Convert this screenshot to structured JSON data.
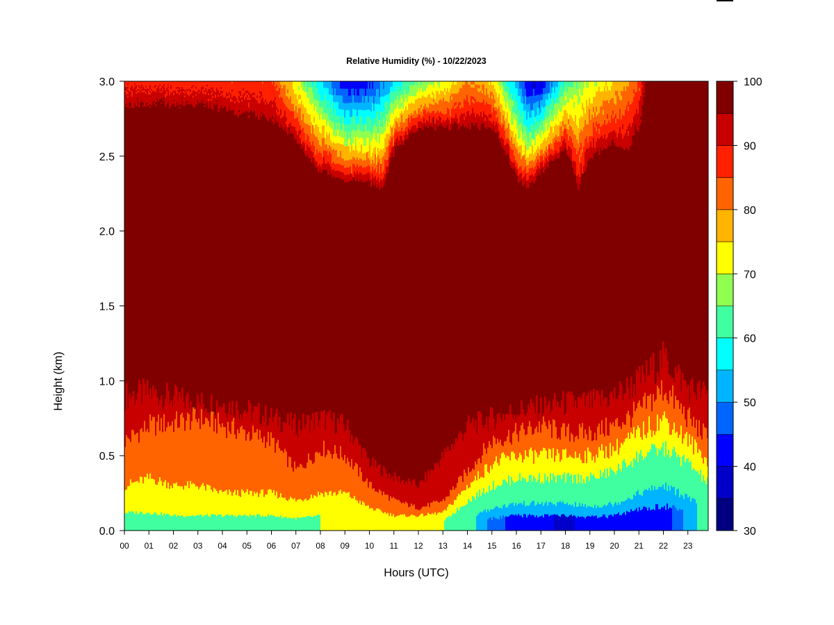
{
  "chart_data": {
    "type": "heatmap",
    "title": "Relative Humidity (%) - 10/22/2023",
    "xlabel": "Hours (UTC)",
    "ylabel": "Height (km)",
    "xlim": [
      0,
      23.9
    ],
    "ylim": [
      0,
      3.0
    ],
    "x_ticks": [
      "00",
      "01",
      "02",
      "03",
      "04",
      "05",
      "06",
      "07",
      "08",
      "09",
      "10",
      "11",
      "12",
      "13",
      "14",
      "15",
      "16",
      "17",
      "18",
      "19",
      "20",
      "21",
      "22",
      "23"
    ],
    "y_ticks": [
      "0.0",
      "0.5",
      "1.0",
      "1.5",
      "2.0",
      "2.5",
      "3.0"
    ],
    "colorbar": {
      "min": 30,
      "max": 100,
      "step": 5,
      "tick_labels": [
        "30",
        "40",
        "50",
        "60",
        "70",
        "80",
        "90",
        "100"
      ],
      "colors": [
        "#000080",
        "#0000c8",
        "#0000ff",
        "#0064ff",
        "#00b4ff",
        "#00ffff",
        "#40ffa0",
        "#90ff50",
        "#ffff00",
        "#ffb400",
        "#ff6400",
        "#ff2000",
        "#c80000",
        "#800000"
      ]
    },
    "grid": false,
    "hours": [
      0,
      1,
      2,
      3,
      4,
      5,
      6,
      7,
      8,
      9,
      10,
      11,
      12,
      13,
      14,
      15,
      16,
      17,
      18,
      19,
      20,
      21,
      22,
      23,
      23.9
    ],
    "boundary_layer_heights": [
      {
        "name": "rh_ge_95_top_km",
        "values": [
          0.9,
          0.92,
          0.88,
          0.85,
          0.85,
          0.8,
          0.75,
          0.7,
          0.75,
          0.7,
          0.45,
          0.35,
          0.3,
          0.5,
          0.7,
          0.75,
          0.8,
          0.82,
          0.85,
          0.85,
          0.9,
          1.0,
          1.15,
          0.95,
          0.9
        ]
      },
      {
        "name": "rh_ge_85_top_km",
        "values": [
          0.6,
          0.7,
          0.72,
          0.75,
          0.7,
          0.65,
          0.6,
          0.4,
          0.55,
          0.5,
          0.3,
          0.2,
          0.15,
          0.2,
          0.4,
          0.6,
          0.65,
          0.7,
          0.65,
          0.65,
          0.7,
          0.8,
          0.95,
          0.75,
          0.6
        ]
      },
      {
        "name": "rh_ge_75_top_km",
        "values": [
          0.3,
          0.35,
          0.3,
          0.3,
          0.25,
          0.25,
          0.25,
          0.2,
          0.25,
          0.25,
          0.15,
          0.1,
          0.1,
          0.12,
          0.3,
          0.45,
          0.5,
          0.5,
          0.5,
          0.5,
          0.55,
          0.65,
          0.75,
          0.6,
          0.45
        ]
      },
      {
        "name": "rh_ge_65_top_km",
        "values": [
          0.12,
          0.12,
          0.1,
          0.1,
          0.1,
          0.1,
          0.1,
          0.08,
          0.1,
          0.1,
          0.06,
          0.05,
          0.05,
          0.06,
          0.2,
          0.3,
          0.35,
          0.35,
          0.35,
          0.35,
          0.4,
          0.5,
          0.55,
          0.45,
          0.3
        ]
      },
      {
        "name": "rh_ge_55_top_km",
        "values": [
          0.03,
          0.03,
          0.03,
          0.03,
          0.03,
          0.03,
          0.03,
          0.02,
          0.03,
          0.03,
          0.02,
          0.01,
          0.01,
          0.02,
          0.08,
          0.15,
          0.18,
          0.18,
          0.18,
          0.16,
          0.18,
          0.25,
          0.3,
          0.22,
          0.12
        ]
      }
    ],
    "dry_layer_aloft": {
      "name": "rh_ge_95_base_km",
      "hours": [
        0,
        3,
        6,
        6.5,
        7,
        8,
        9,
        10,
        10.5,
        11,
        12,
        13,
        14,
        15,
        15.5,
        16,
        16.5,
        17,
        18,
        18.5,
        19,
        20,
        20.5,
        21,
        21.3,
        23.9
      ],
      "values": [
        2.85,
        2.85,
        2.75,
        2.7,
        2.6,
        2.4,
        2.35,
        2.32,
        2.3,
        2.55,
        2.7,
        2.7,
        2.7,
        2.7,
        2.55,
        2.35,
        2.3,
        2.4,
        2.55,
        2.3,
        2.5,
        2.6,
        2.55,
        2.7,
        3.0,
        3.0
      ]
    },
    "min_rh_aloft": {
      "hours": [
        0,
        6,
        7,
        8,
        9,
        10,
        11,
        12,
        13,
        14,
        15,
        16,
        16.5,
        17,
        18,
        19,
        20,
        21,
        21.3,
        23.9
      ],
      "values": [
        88,
        86,
        70,
        55,
        40,
        42,
        55,
        65,
        70,
        80,
        75,
        50,
        38,
        40,
        62,
        70,
        75,
        85,
        100,
        100
      ]
    },
    "min_rh_surface": {
      "hours": [
        0,
        6,
        10,
        13,
        14,
        15,
        16,
        17,
        18,
        19,
        20,
        21,
        22,
        23,
        23.9
      ],
      "values": [
        62,
        62,
        68,
        65,
        58,
        48,
        42,
        42,
        38,
        44,
        45,
        44,
        42,
        52,
        60
      ]
    }
  }
}
